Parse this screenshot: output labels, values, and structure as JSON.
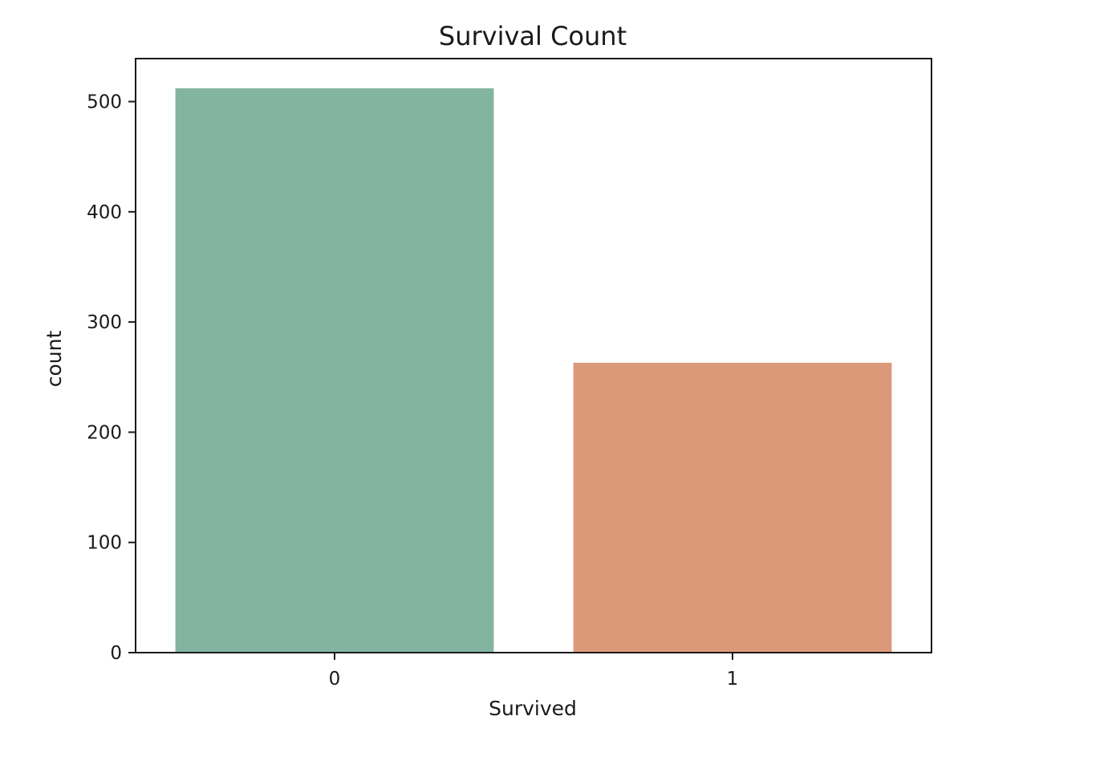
{
  "chart_data": {
    "type": "bar",
    "title": "Survival Count",
    "xlabel": "Survived",
    "ylabel": "count",
    "categories": [
      "0",
      "1"
    ],
    "values": [
      512,
      263
    ],
    "colors": [
      "#82b4a1",
      "#dc9979"
    ],
    "ylim": [
      0,
      539
    ],
    "yticks": [
      0,
      100,
      200,
      300,
      400,
      500
    ],
    "grid": false,
    "legend": "none"
  }
}
